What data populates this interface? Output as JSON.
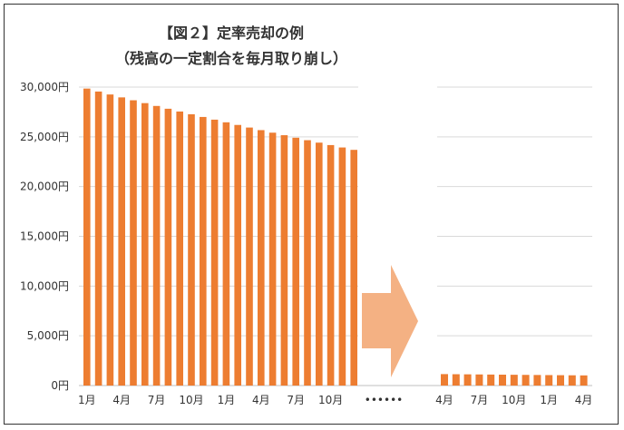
{
  "chart_data": {
    "type": "bar",
    "title": "【図２】定率売却の例",
    "subtitle": "（残高の一定割合を毎月取り崩し）",
    "ylim": [
      0,
      30000
    ],
    "y_ticks": [
      "30,000円",
      "25,000円",
      "20,000円",
      "15,000円",
      "10,000円",
      "5,000円",
      "0円"
    ],
    "y_tick_values": [
      30000,
      25000,
      20000,
      15000,
      10000,
      5000,
      0
    ],
    "grid": true,
    "bar_color": "#ED7D31",
    "arrow_color": "#F4B183",
    "gap_marker": "••••••",
    "left_panel": {
      "values": [
        29850,
        29553,
        29257,
        28964,
        28675,
        28388,
        28104,
        27823,
        27545,
        27270,
        26997,
        26727,
        26460,
        26195,
        25933,
        25674,
        25417,
        25163,
        24911,
        24662,
        24416,
        24172,
        23930,
        23691
      ],
      "x_tick_labels": [
        "1月",
        "4月",
        "7月",
        "10月",
        "1月",
        "4月",
        "7月",
        "10月"
      ],
      "x_tick_indices": [
        0,
        3,
        6,
        9,
        12,
        15,
        18,
        21
      ]
    },
    "right_panel": {
      "values": [
        1150,
        1139,
        1128,
        1116,
        1105,
        1094,
        1083,
        1072,
        1062,
        1051,
        1041,
        1030,
        1020
      ],
      "x_tick_labels": [
        "4月",
        "7月",
        "10月",
        "1月",
        "4月"
      ],
      "x_tick_indices": [
        0,
        3,
        6,
        9,
        12
      ]
    }
  }
}
